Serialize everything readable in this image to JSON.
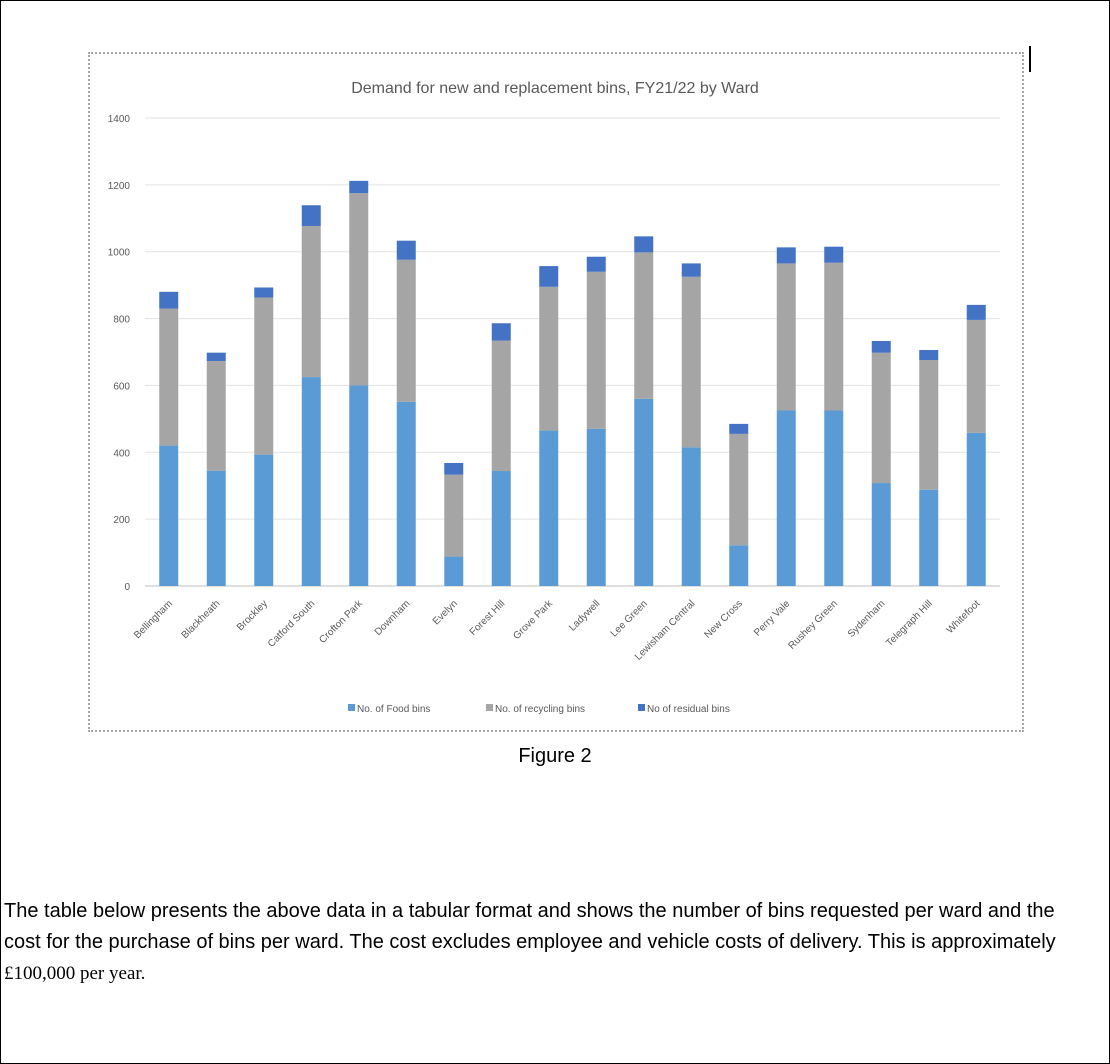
{
  "chart_data": {
    "type": "bar",
    "stacked": true,
    "title": "Demand for new and replacement bins, FY21/22 by Ward",
    "categories": [
      "Bellingham",
      "Blackheath",
      "Brockley",
      "Catford South",
      "Crofton Park",
      "Downham",
      "Evelyn",
      "Forest Hill",
      "Grove Park",
      "Ladywell",
      "Lee Green",
      "Lewisham Central",
      "New Cross",
      "Perry Vale",
      "Rushey Green",
      "Sydenham",
      "Telegraph Hill",
      "Whitefoot"
    ],
    "series": [
      {
        "name": "No. of Food bins",
        "color": "#5b9bd5",
        "values": [
          420,
          345,
          393,
          625,
          600,
          551,
          88,
          344,
          465,
          470,
          560,
          415,
          122,
          525,
          525,
          308,
          288,
          458
        ]
      },
      {
        "name": "No. of recycling bins",
        "color": "#a5a5a5",
        "values": [
          410,
          328,
          470,
          452,
          575,
          425,
          245,
          390,
          430,
          470,
          438,
          510,
          333,
          440,
          442,
          390,
          388,
          338
        ]
      },
      {
        "name": "No of residual bins",
        "color": "#4472c4",
        "values": [
          50,
          25,
          30,
          62,
          37,
          57,
          35,
          52,
          62,
          45,
          48,
          40,
          30,
          48,
          48,
          35,
          30,
          45
        ]
      }
    ],
    "ylim": [
      0,
      1400
    ],
    "yticks": [
      "0",
      "200",
      "400",
      "600",
      "800",
      "1000",
      "1200",
      "1400"
    ],
    "grid": true,
    "legend_position": "bottom"
  },
  "caption": "Figure 2",
  "paragraph": {
    "text_main": "The table below presents the above data in a tabular format and shows the number of bins requested per ward and the cost for the purchase of bins per ward. The cost excludes employee and vehicle costs of delivery. This is approximately ",
    "text_serif": "£100,000 per year."
  }
}
